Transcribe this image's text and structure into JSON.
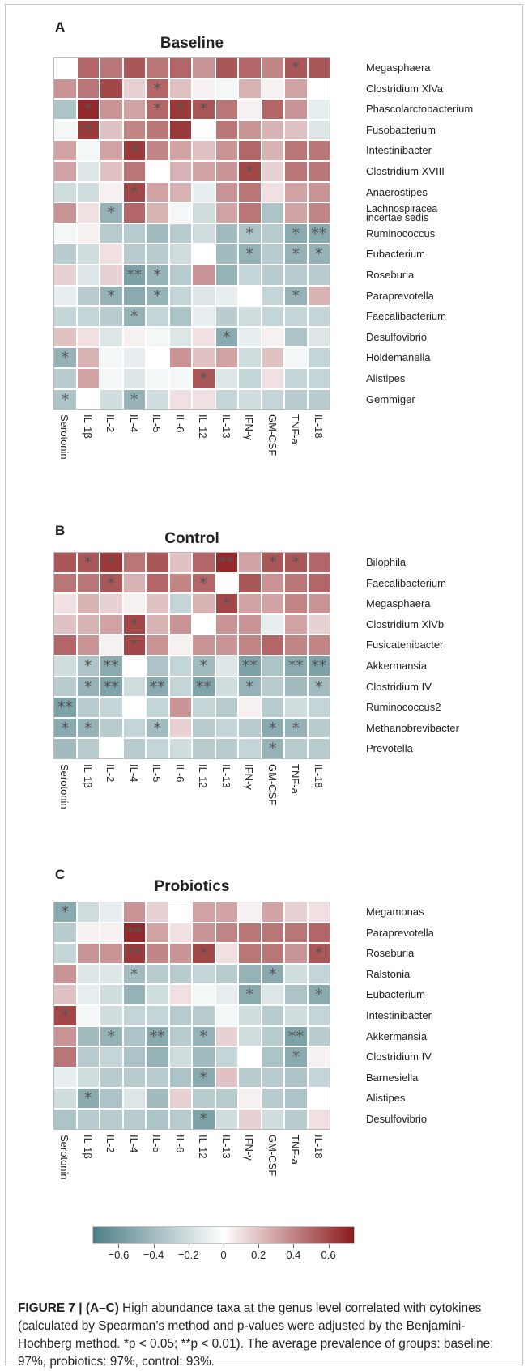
{
  "figure": {
    "caption_lead": "FIGURE 7 | (A–C)",
    "caption_text": " High abundance taxa at the genus level correlated with cytokines (calculated by Spearman’s method and p-values were adjusted by the Benjamini-Hochberg method. *p < 0.05; **p < 0.01). The average prevalence of groups: baseline: 97%, probiotics: 97%, control: 93%."
  },
  "colorbar": {
    "ticks": [
      "−0.6",
      "−0.4",
      "−0.2",
      "0",
      "0.2",
      "0.4",
      "0.6"
    ],
    "tick_values": [
      -0.6,
      -0.4,
      -0.2,
      0,
      0.2,
      0.4,
      0.6
    ],
    "range": [
      -0.75,
      0.75
    ],
    "colors": {
      "neg": "#4e8087",
      "mid": "#ffffff",
      "pos": "#8b1a1c"
    }
  },
  "chart_data": [
    {
      "type": "heatmap",
      "panel": "A",
      "title": "Baseline",
      "columns": [
        "Serotonin",
        "IL-1β",
        "IL-2",
        "IL-4",
        "IL-5",
        "IL-6",
        "IL-12",
        "IL-13",
        "IFN-γ",
        "GM-CSF",
        "TNF-a",
        "IL-18"
      ],
      "rows": [
        "Megasphaera",
        "Clostridium XlVa",
        "Phascolarctobacterium",
        "Fusobacterium",
        "Intestinibacter",
        "Clostridium XVIII",
        "Anaerostipes",
        "Lachnospiracea incertae sedis",
        "Ruminococcus",
        "Eubacterium",
        "Roseburia",
        "Paraprevotella",
        "Faecalibacterium",
        "Desulfovibrio",
        "Holdemanella",
        "Alistipes",
        "Gemmiger"
      ],
      "values": [
        [
          0.0,
          0.5,
          0.45,
          0.55,
          0.45,
          0.5,
          0.35,
          0.55,
          0.5,
          0.4,
          0.55,
          0.55
        ],
        [
          0.35,
          0.45,
          0.6,
          0.15,
          0.5,
          0.2,
          0.05,
          -0.05,
          0.25,
          0.05,
          0.3,
          0.0
        ],
        [
          -0.35,
          0.7,
          0.35,
          0.3,
          0.5,
          0.65,
          0.55,
          0.45,
          0.05,
          0.5,
          0.35,
          -0.1
        ],
        [
          -0.05,
          0.65,
          0.2,
          0.4,
          0.45,
          0.65,
          0.0,
          0.45,
          0.35,
          0.25,
          0.2,
          -0.15
        ],
        [
          0.3,
          -0.05,
          0.3,
          0.65,
          0.4,
          0.3,
          0.2,
          0.35,
          0.5,
          0.25,
          0.45,
          0.45
        ],
        [
          0.3,
          -0.15,
          0.2,
          0.45,
          0.0,
          0.25,
          0.3,
          0.35,
          0.6,
          0.15,
          0.45,
          0.45
        ],
        [
          -0.2,
          -0.2,
          0.05,
          0.6,
          0.3,
          0.25,
          -0.1,
          0.35,
          0.45,
          0.1,
          0.3,
          0.35
        ],
        [
          0.35,
          0.1,
          -0.45,
          0.5,
          0.25,
          -0.05,
          -0.2,
          0.3,
          0.45,
          -0.35,
          0.3,
          0.4
        ],
        [
          -0.05,
          0.05,
          -0.3,
          -0.3,
          -0.4,
          -0.3,
          -0.2,
          -0.4,
          -0.35,
          -0.3,
          -0.5,
          -0.5
        ],
        [
          -0.3,
          -0.2,
          0.1,
          -0.3,
          -0.3,
          -0.2,
          0.0,
          -0.4,
          -0.45,
          -0.3,
          -0.45,
          -0.45
        ],
        [
          0.15,
          -0.15,
          0.15,
          -0.55,
          -0.45,
          -0.3,
          0.35,
          -0.45,
          -0.25,
          -0.3,
          -0.3,
          -0.3
        ],
        [
          -0.1,
          -0.3,
          -0.45,
          -0.5,
          -0.45,
          -0.25,
          -0.15,
          -0.1,
          0.0,
          -0.25,
          -0.45,
          0.25
        ],
        [
          -0.25,
          -0.25,
          -0.3,
          -0.45,
          -0.25,
          -0.35,
          -0.1,
          -0.3,
          -0.2,
          -0.25,
          -0.25,
          -0.25
        ],
        [
          0.2,
          0.1,
          -0.15,
          0.05,
          -0.05,
          -0.15,
          0.1,
          -0.5,
          -0.1,
          0.05,
          -0.35,
          -0.15
        ],
        [
          -0.45,
          0.25,
          -0.05,
          -0.1,
          0.0,
          0.35,
          0.2,
          0.3,
          -0.2,
          0.2,
          -0.05,
          -0.25
        ],
        [
          -0.3,
          0.3,
          -0.05,
          -0.15,
          -0.05,
          -0.05,
          0.55,
          -0.15,
          -0.25,
          0.1,
          -0.25,
          -0.25
        ],
        [
          -0.35,
          0.0,
          -0.2,
          -0.45,
          -0.2,
          0.1,
          0.1,
          -0.25,
          -0.2,
          -0.25,
          -0.3,
          -0.3
        ]
      ],
      "stars": [
        [
          "",
          "",
          "",
          "",
          "",
          "",
          "",
          "",
          "",
          "",
          "*",
          ""
        ],
        [
          "",
          "",
          "",
          "",
          "*",
          "",
          "",
          "",
          "",
          "",
          "",
          ""
        ],
        [
          "",
          "*",
          "",
          "",
          "*",
          "*",
          "*",
          "",
          "",
          "",
          "",
          ""
        ],
        [
          "",
          "*",
          "",
          "",
          "",
          "",
          "",
          "",
          "",
          "",
          "",
          ""
        ],
        [
          "",
          "",
          "",
          "*",
          "",
          "",
          "",
          "",
          "",
          "",
          "",
          ""
        ],
        [
          "",
          "",
          "",
          "",
          "",
          "",
          "",
          "",
          "*",
          "",
          "",
          ""
        ],
        [
          "",
          "",
          "",
          "*",
          "",
          "",
          "",
          "",
          "",
          "",
          "",
          ""
        ],
        [
          "",
          "",
          "*",
          "",
          "",
          "",
          "",
          "",
          "",
          "",
          "",
          ""
        ],
        [
          "",
          "",
          "",
          "",
          "",
          "",
          "",
          "",
          "*",
          "",
          "*",
          "**"
        ],
        [
          "",
          "",
          "",
          "",
          "",
          "",
          "",
          "",
          "*",
          "",
          "*",
          "*"
        ],
        [
          "",
          "",
          "",
          "**",
          "*",
          "",
          "",
          "",
          "",
          "",
          "",
          ""
        ],
        [
          "",
          "",
          "*",
          "",
          "*",
          "",
          "",
          "",
          "",
          "",
          "*",
          ""
        ],
        [
          "",
          "",
          "",
          "*",
          "",
          "",
          "",
          "",
          "",
          "",
          "",
          ""
        ],
        [
          "",
          "",
          "",
          "",
          "",
          "",
          "",
          "*",
          "",
          "",
          "",
          ""
        ],
        [
          "*",
          "",
          "",
          "",
          "",
          "",
          "",
          "",
          "",
          "",
          "",
          ""
        ],
        [
          "",
          "",
          "",
          "",
          "",
          "",
          "*",
          "",
          "",
          "",
          "",
          ""
        ],
        [
          "*",
          "",
          "",
          "*",
          "",
          "",
          "",
          "",
          "",
          "",
          "",
          ""
        ]
      ]
    },
    {
      "type": "heatmap",
      "panel": "B",
      "title": "Control",
      "columns": [
        "Serotonin",
        "IL-1β",
        "IL-2",
        "IL-4",
        "IL-5",
        "IL-6",
        "IL-12",
        "IL-13",
        "IFN-γ",
        "GM-CSF",
        "TNF-a",
        "IL-18"
      ],
      "rows": [
        "Bilophila",
        "Faecalibacterium",
        "Megasphaera",
        "Clostridium XlVb",
        "Fusicatenibacter",
        "Akkermansia",
        "Clostridium IV",
        "Ruminococcus2",
        "Methanobrevibacter",
        "Prevotella"
      ],
      "values": [
        [
          0.55,
          0.55,
          0.65,
          0.45,
          0.55,
          0.2,
          0.5,
          0.7,
          0.3,
          0.55,
          0.55,
          0.5
        ],
        [
          0.45,
          0.45,
          0.55,
          0.25,
          0.5,
          0.4,
          0.5,
          0.0,
          0.55,
          0.35,
          0.45,
          0.5
        ],
        [
          0.1,
          0.25,
          0.15,
          0.05,
          0.2,
          -0.25,
          0.25,
          0.6,
          0.3,
          0.3,
          0.4,
          0.35
        ],
        [
          0.2,
          0.25,
          0.3,
          0.6,
          0.25,
          0.35,
          0.0,
          0.35,
          0.35,
          -0.1,
          0.3,
          0.15
        ],
        [
          0.5,
          0.35,
          0.05,
          0.6,
          0.35,
          0.05,
          0.35,
          0.35,
          0.4,
          0.5,
          0.4,
          0.4
        ],
        [
          -0.2,
          -0.35,
          -0.5,
          0.0,
          -0.35,
          -0.25,
          -0.4,
          -0.15,
          -0.55,
          -0.35,
          -0.5,
          -0.55
        ],
        [
          -0.3,
          -0.45,
          -0.55,
          -0.2,
          -0.5,
          -0.25,
          -0.55,
          -0.2,
          -0.45,
          -0.3,
          -0.4,
          -0.4
        ],
        [
          -0.55,
          -0.3,
          -0.25,
          0.0,
          -0.25,
          0.35,
          -0.25,
          -0.3,
          0.05,
          -0.3,
          -0.2,
          -0.25
        ],
        [
          -0.5,
          -0.45,
          -0.3,
          -0.25,
          -0.4,
          0.15,
          -0.3,
          -0.25,
          -0.3,
          -0.5,
          -0.45,
          -0.3
        ],
        [
          -0.4,
          -0.3,
          0.0,
          -0.3,
          -0.25,
          -0.2,
          -0.3,
          -0.3,
          -0.25,
          -0.45,
          -0.3,
          -0.3
        ]
      ],
      "stars": [
        [
          "",
          "*",
          "*",
          "",
          "",
          "",
          "",
          "**",
          "",
          "*",
          "*",
          ""
        ],
        [
          "",
          "",
          "*",
          "",
          "",
          "",
          "*",
          "",
          "",
          "",
          "",
          ""
        ],
        [
          "",
          "",
          "",
          "",
          "",
          "",
          "",
          "*",
          "",
          "",
          "",
          ""
        ],
        [
          "",
          "",
          "",
          "*",
          "",
          "",
          "",
          "",
          "",
          "",
          "",
          ""
        ],
        [
          "",
          "",
          "",
          "*",
          "",
          "",
          "",
          "",
          "",
          "",
          "",
          ""
        ],
        [
          "",
          "*",
          "**",
          "",
          "",
          "",
          "*",
          "",
          "**",
          "",
          "**",
          "**"
        ],
        [
          "",
          "*",
          "**",
          "",
          "**",
          "",
          "**",
          "",
          "*",
          "",
          "",
          "*"
        ],
        [
          "**",
          "",
          "",
          "",
          "",
          "",
          "",
          "",
          "",
          "",
          "",
          ""
        ],
        [
          "*",
          "*",
          "",
          "",
          "*",
          "",
          "",
          "",
          "",
          "*",
          "*",
          ""
        ],
        [
          "",
          "",
          "",
          "",
          "",
          "",
          "",
          "",
          "",
          "*",
          "",
          ""
        ]
      ]
    },
    {
      "type": "heatmap",
      "panel": "C",
      "title": "Probiotics",
      "columns": [
        "Serotonin",
        "IL-1β",
        "IL-2",
        "IL-4",
        "IL-5",
        "IL-6",
        "IL-12",
        "IL-13",
        "IFN-γ",
        "GM-CSF",
        "TNF-a",
        "IL-18"
      ],
      "rows": [
        "Megamonas",
        "Paraprevotella",
        "Roseburia",
        "Ralstonia",
        "Eubacterium",
        "Intestinibacter",
        "Akkermansia",
        "Clostridium IV",
        "Barnesiella",
        "Alistipes",
        "Desulfovibrio"
      ],
      "values": [
        [
          -0.5,
          -0.2,
          -0.1,
          0.35,
          0.15,
          0.0,
          0.3,
          0.3,
          0.05,
          0.3,
          0.15,
          0.1
        ],
        [
          -0.3,
          0.05,
          0.05,
          0.7,
          0.3,
          0.1,
          0.35,
          0.4,
          0.45,
          0.45,
          0.45,
          0.5
        ],
        [
          -0.25,
          0.35,
          0.35,
          0.65,
          0.4,
          0.35,
          0.6,
          0.1,
          0.45,
          0.45,
          0.35,
          0.55
        ],
        [
          0.35,
          -0.15,
          -0.15,
          -0.4,
          -0.3,
          -0.3,
          -0.25,
          -0.3,
          -0.45,
          -0.5,
          -0.2,
          -0.25
        ],
        [
          0.2,
          -0.1,
          -0.2,
          -0.45,
          -0.2,
          0.1,
          -0.05,
          -0.1,
          -0.5,
          -0.15,
          -0.35,
          -0.5
        ],
        [
          0.6,
          -0.05,
          -0.2,
          -0.25,
          -0.25,
          -0.3,
          -0.3,
          -0.05,
          -0.2,
          -0.3,
          -0.2,
          -0.25
        ],
        [
          0.35,
          -0.4,
          -0.45,
          -0.35,
          -0.5,
          -0.3,
          -0.45,
          0.15,
          -0.2,
          -0.3,
          -0.55,
          -0.3
        ],
        [
          0.45,
          -0.3,
          -0.25,
          -0.35,
          -0.45,
          -0.2,
          -0.4,
          -0.25,
          0.0,
          -0.35,
          -0.5,
          0.05
        ],
        [
          -0.1,
          -0.2,
          -0.3,
          -0.3,
          -0.3,
          -0.35,
          -0.5,
          0.2,
          -0.3,
          -0.3,
          -0.35,
          -0.25
        ],
        [
          -0.2,
          -0.5,
          -0.35,
          -0.15,
          -0.4,
          0.15,
          -0.3,
          -0.3,
          0.05,
          -0.3,
          -0.35,
          0.0
        ],
        [
          -0.35,
          -0.3,
          -0.3,
          -0.3,
          -0.35,
          -0.3,
          -0.55,
          -0.2,
          0.15,
          -0.2,
          -0.3,
          0.1
        ]
      ],
      "stars": [
        [
          "*",
          "",
          "",
          "",
          "",
          "",
          "",
          "",
          "",
          "",
          "",
          ""
        ],
        [
          "",
          "",
          "",
          "**",
          "",
          "",
          "",
          "",
          "",
          "",
          "",
          ""
        ],
        [
          "",
          "",
          "",
          "**",
          "",
          "",
          "*",
          "",
          "",
          "",
          "",
          "*"
        ],
        [
          "",
          "",
          "",
          "*",
          "",
          "",
          "",
          "",
          "",
          "*",
          "",
          ""
        ],
        [
          "",
          "",
          "",
          "",
          "",
          "",
          "",
          "",
          "*",
          "",
          "",
          "*"
        ],
        [
          "*",
          "",
          "",
          "",
          "",
          "",
          "",
          "",
          "",
          "",
          "",
          ""
        ],
        [
          "",
          "",
          "*",
          "",
          "**",
          "",
          "*",
          "",
          "",
          "",
          "**",
          ""
        ],
        [
          "",
          "",
          "",
          "",
          "",
          "",
          "",
          "",
          "",
          "",
          "*",
          ""
        ],
        [
          "",
          "",
          "",
          "",
          "",
          "",
          "*",
          "",
          "",
          "",
          "",
          ""
        ],
        [
          "",
          "*",
          "",
          "",
          "",
          "",
          "",
          "",
          "",
          "",
          "",
          ""
        ],
        [
          "",
          "",
          "",
          "",
          "",
          "",
          "*",
          "",
          "",
          "",
          "",
          ""
        ]
      ]
    }
  ]
}
